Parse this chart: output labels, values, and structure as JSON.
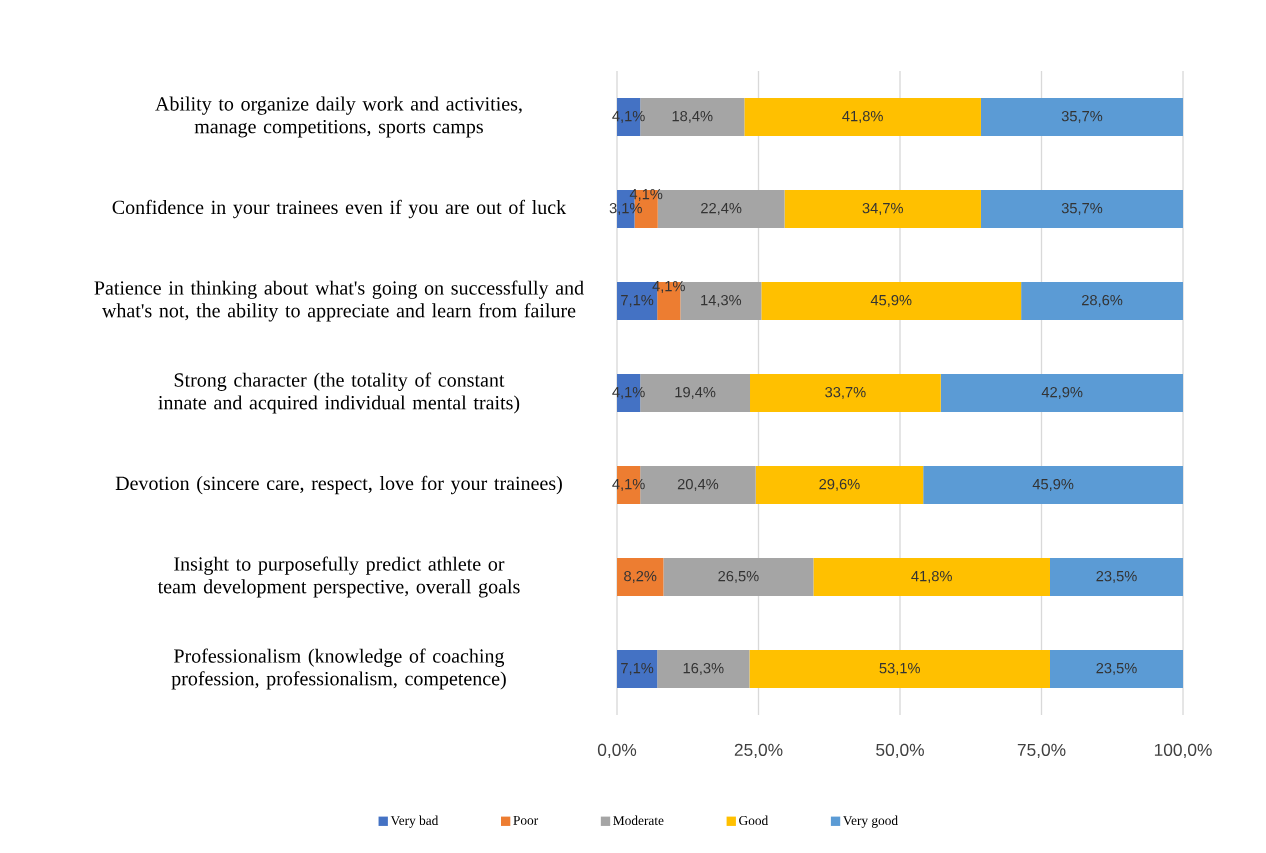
{
  "chart_data": {
    "type": "bar",
    "orientation": "horizontal",
    "stacked": true,
    "categories": [
      "Ability to organize daily work and activities, manage competitions, sports camps",
      "Confidence in your trainees even if you are out of luck",
      "Patience in thinking about what's going on successfully and what's not, the ability to appreciate and learn from failure",
      "Strong character (the totality of constant innate and acquired individual mental traits)",
      "Devotion (sincere care, respect, love for your trainees)",
      "Insight to purposefully predict athlete or team development perspective, overall goals",
      "Professionalism (knowledge of coaching profession, professionalism, competence)"
    ],
    "series": [
      {
        "name": "Very bad",
        "color": "#4472c4",
        "values": [
          4.1,
          3.1,
          7.1,
          4.1,
          0,
          0,
          7.1
        ],
        "value_labels": [
          "4,1%",
          "3,1%",
          "7,1%",
          "4,1%",
          null,
          null,
          "7,1%"
        ]
      },
      {
        "name": "Poor",
        "color": "#ed7d31",
        "values": [
          0,
          4.1,
          4.1,
          0,
          4.1,
          8.2,
          0
        ],
        "value_labels": [
          null,
          "4,1%",
          "4,1%",
          null,
          "4,1%",
          "8,2%",
          null
        ]
      },
      {
        "name": "Moderate",
        "color": "#a5a5a5",
        "values": [
          18.4,
          22.4,
          14.3,
          19.4,
          20.4,
          26.5,
          16.3
        ],
        "value_labels": [
          "18,4%",
          "22,4%",
          "14,3%",
          "19,4%",
          "20,4%",
          "26,5%",
          "16,3%"
        ]
      },
      {
        "name": "Good",
        "color": "#ffc000",
        "values": [
          41.8,
          34.7,
          45.9,
          33.7,
          29.6,
          41.8,
          53.1
        ],
        "value_labels": [
          "41,8%",
          "34,7%",
          "45,9%",
          "33,7%",
          "29,6%",
          "41,8%",
          "53,1%"
        ]
      },
      {
        "name": "Very good",
        "color": "#5b9bd5",
        "values": [
          35.7,
          35.7,
          28.6,
          42.9,
          45.9,
          23.5,
          23.5
        ],
        "value_labels": [
          "35,7%",
          "35,7%",
          "28,6%",
          "42,9%",
          "45,9%",
          "23,5%",
          "23,5%"
        ]
      }
    ],
    "xlim": [
      0,
      100
    ],
    "xticks": [
      {
        "value": 0,
        "label": "0,0%"
      },
      {
        "value": 25,
        "label": "25,0%"
      },
      {
        "value": 50,
        "label": "50,0%"
      },
      {
        "value": 75,
        "label": "75,0%"
      },
      {
        "value": 100,
        "label": "100,0%"
      }
    ],
    "grid": "x",
    "legend": "bottom"
  }
}
